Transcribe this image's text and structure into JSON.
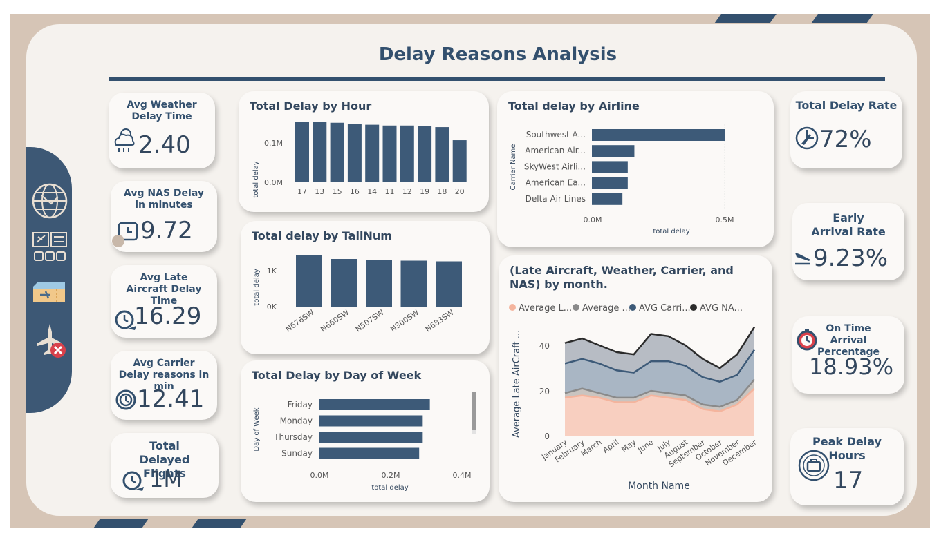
{
  "title": "Delay Reasons Analysis",
  "left_kpis": [
    {
      "label": "Avg Weather Delay Time",
      "value": "2.40",
      "icon": "weather-cloud-icon"
    },
    {
      "label": "Avg NAS Delay in minutes",
      "value": "9.72",
      "icon": "clock-icon"
    },
    {
      "label": "Avg Late Aircraft Delay Time",
      "value": "16.29",
      "icon": "clock-plane-icon"
    },
    {
      "label": "Avg Carrier Delay reasons in min",
      "value": "12.41",
      "icon": "speed-clock-icon"
    },
    {
      "label": "Total Delayed Flights",
      "value": "1M",
      "icon": "clock-plane-icon"
    }
  ],
  "right_kpis": [
    {
      "label": "Total Delay Rate",
      "value": "72%",
      "icon": "plane-clock-icon"
    },
    {
      "label": "Early Arrival Rate",
      "value": "9.23%",
      "icon": "plane-landing-icon"
    },
    {
      "label": "On Time Arrival Percentage",
      "value": "18.93%",
      "icon": "stopwatch-icon"
    },
    {
      "label": "Peak Delay Hours",
      "value": "17",
      "icon": "briefcase-clock-icon"
    }
  ],
  "sidenav": [
    "globe-network-icon",
    "airport-board-icon",
    "boarding-pass-icon",
    "flight-cancel-icon"
  ],
  "colors": {
    "primary": "#3d5a78",
    "frame": "#d6c5b6",
    "board": "#f5f2ee",
    "late": "#f4b49d",
    "weather": "#8a8a8a",
    "carrier": "#3d5a78",
    "nas": "#2b2b2b"
  },
  "charts": {
    "by_hour": {
      "title": "Total Delay by Hour",
      "ylabel": "total delay",
      "yticks": [
        "0.0M",
        "0.1M"
      ]
    },
    "by_tail": {
      "title": "Total delay by TailNum",
      "ylabel": "total delay",
      "yticks": [
        "0K",
        "1K"
      ]
    },
    "by_day": {
      "title": "Total Delay by Day of Week",
      "ylabel": "Day of Week",
      "xlabel": "total delay",
      "xticks": [
        "0.0M",
        "0.2M",
        "0.4M"
      ]
    },
    "by_airline": {
      "title": "Total delay by Airline",
      "ylabel": "Carrier Name",
      "xlabel": "total delay",
      "xticks": [
        "0.0M",
        "0.5M"
      ]
    },
    "by_month": {
      "title": "(Late Aircraft, Weather, Carrier, and NAS) by month.",
      "ylabel": "Average Late AirCraft ...",
      "xlabel": "Month Name",
      "legend": [
        "Average L...",
        "Average ...",
        "AVG Carri...",
        "AVG NA..."
      ],
      "yticks": [
        "0",
        "20",
        "40"
      ]
    }
  },
  "chart_data": [
    {
      "type": "bar",
      "title": "Total Delay by Hour",
      "ylabel": "total delay",
      "categories": [
        "17",
        "13",
        "15",
        "16",
        "14",
        "11",
        "12",
        "19",
        "18",
        "20"
      ],
      "values": [
        0.152,
        0.152,
        0.15,
        0.147,
        0.145,
        0.143,
        0.143,
        0.142,
        0.139,
        0.106
      ],
      "ylim": [
        0,
        0.16
      ]
    },
    {
      "type": "bar",
      "title": "Total delay by TailNum",
      "ylabel": "total delay",
      "categories": [
        "N676SW",
        "N660SW",
        "N507SW",
        "N300SW",
        "N683SW"
      ],
      "values": [
        1480,
        1380,
        1360,
        1330,
        1310
      ],
      "ylim": [
        0,
        1600
      ]
    },
    {
      "type": "bar",
      "title": "Total Delay by Day of Week",
      "ylabel": "Day of Week",
      "xlabel": "total delay",
      "categories": [
        "Friday",
        "Monday",
        "Thursday",
        "Sunday"
      ],
      "values": [
        0.31,
        0.29,
        0.29,
        0.28
      ],
      "xlim": [
        0,
        0.4
      ]
    },
    {
      "type": "bar",
      "title": "Total delay by Airline",
      "ylabel": "Carrier Name",
      "xlabel": "total delay",
      "categories": [
        "Southwest A...",
        "American Air...",
        "SkyWest Airli...",
        "American Ea...",
        "Delta Air Lines"
      ],
      "values": [
        0.5,
        0.16,
        0.135,
        0.135,
        0.115
      ],
      "xlim": [
        0,
        0.5
      ]
    },
    {
      "type": "area",
      "title": "(Late Aircraft, Weather, Carrier, and NAS) by month.",
      "xlabel": "Month Name",
      "ylabel": "Average Late AirCraft ...",
      "categories": [
        "January",
        "February",
        "March",
        "April",
        "May",
        "June",
        "July",
        "August",
        "September",
        "October",
        "November",
        "December"
      ],
      "series": [
        {
          "name": "Average L...",
          "values": [
            17,
            18,
            17,
            15,
            15,
            18,
            17,
            16,
            12,
            11,
            14,
            21
          ]
        },
        {
          "name": "Average ...",
          "values": [
            19,
            21,
            19,
            17,
            17,
            20,
            19,
            18,
            14,
            13,
            16,
            25
          ]
        },
        {
          "name": "AVG Carri...",
          "values": [
            32,
            34,
            32,
            29,
            28,
            33,
            33,
            31,
            26,
            24,
            27,
            38
          ]
        },
        {
          "name": "AVG NA...",
          "values": [
            41,
            43,
            40,
            37,
            36,
            45,
            44,
            40,
            34,
            30,
            36,
            48
          ]
        }
      ],
      "ylim": [
        0,
        50
      ]
    }
  ]
}
